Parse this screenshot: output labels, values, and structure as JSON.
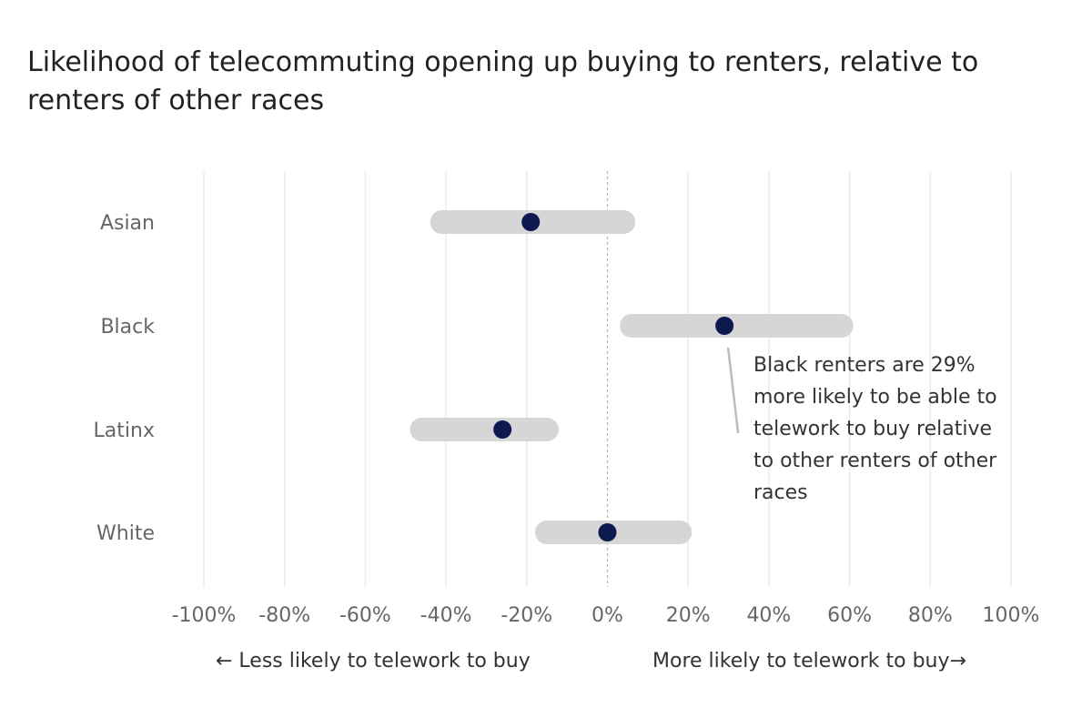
{
  "chart_data": {
    "type": "dot-range",
    "title": "Likelihood of telecommuting opening up buying to renters, relative to renters of other races",
    "categories": [
      "Asian",
      "Black",
      "Latinx",
      "White"
    ],
    "estimates": [
      -19,
      29,
      -26,
      0
    ],
    "ranges": [
      [
        -41,
        4
      ],
      [
        6,
        58
      ],
      [
        -46,
        -15
      ],
      [
        -15,
        18
      ]
    ],
    "xlim": [
      -100,
      100
    ],
    "xticks": [
      -100,
      -80,
      -60,
      -40,
      -20,
      0,
      20,
      40,
      60,
      80,
      100
    ],
    "xtick_labels": [
      "-100%",
      "-80%",
      "-60%",
      "-40%",
      "-20%",
      "0%",
      "20%",
      "40%",
      "60%",
      "80%",
      "100%"
    ],
    "x_left_label": "← Less likely to telework to buy",
    "x_right_label": "More likely to telework to buy→",
    "annotation": {
      "category": "Black",
      "text": "Black renters are 29% more likely to be able to telework to buy relative to other renters of other races"
    },
    "colors": {
      "point": "#0d1a4f",
      "range": "#d6d6d6",
      "grid": "#ececec",
      "zero_line": "#b5b5b5",
      "connector": "#bcbcbc"
    },
    "grid": true
  }
}
